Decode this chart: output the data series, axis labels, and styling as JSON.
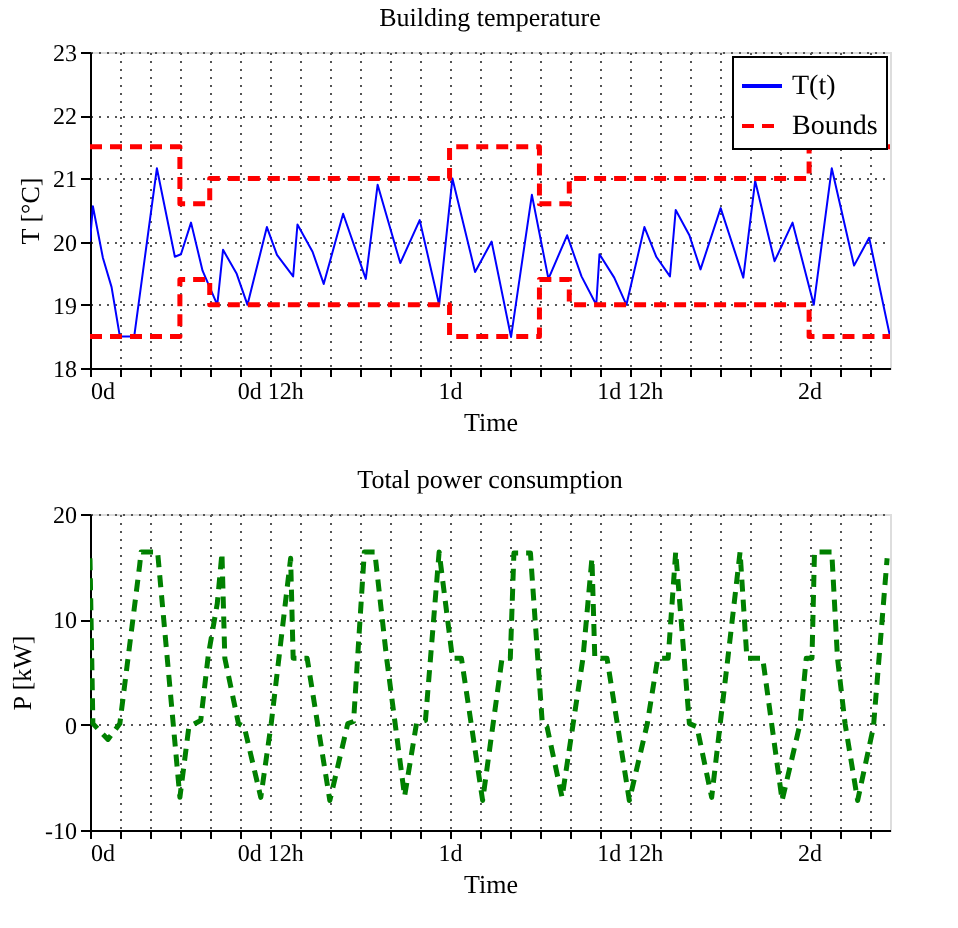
{
  "chart_data": [
    {
      "type": "line",
      "title": "Building temperature",
      "xlabel": "Time",
      "ylabel": "T [°C]",
      "xlim": [
        0,
        2.225
      ],
      "xticks": [
        {
          "value": 0,
          "label": "0d"
        },
        {
          "value": 0.0833,
          "label": null
        },
        {
          "value": 0.1667,
          "label": null
        },
        {
          "value": 0.25,
          "label": null
        },
        {
          "value": 0.3333,
          "label": null
        },
        {
          "value": 0.4167,
          "label": null
        },
        {
          "value": 0.5,
          "label": "0d 12h"
        },
        {
          "value": 0.5833,
          "label": null
        },
        {
          "value": 0.6667,
          "label": null
        },
        {
          "value": 0.75,
          "label": null
        },
        {
          "value": 0.8333,
          "label": null
        },
        {
          "value": 0.9167,
          "label": null
        },
        {
          "value": 1,
          "label": "1d"
        },
        {
          "value": 1.0833,
          "label": null
        },
        {
          "value": 1.1667,
          "label": null
        },
        {
          "value": 1.25,
          "label": null
        },
        {
          "value": 1.3333,
          "label": null
        },
        {
          "value": 1.4167,
          "label": null
        },
        {
          "value": 1.5,
          "label": "1d 12h"
        },
        {
          "value": 1.5833,
          "label": null
        },
        {
          "value": 1.6667,
          "label": null
        },
        {
          "value": 1.75,
          "label": null
        },
        {
          "value": 1.8333,
          "label": null
        },
        {
          "value": 1.9167,
          "label": null
        },
        {
          "value": 2,
          "label": "2d"
        },
        {
          "value": 2.0833,
          "label": null
        },
        {
          "value": 2.1667,
          "label": null
        }
      ],
      "ylim": [
        18,
        23
      ],
      "yticks": [
        18,
        19,
        20,
        21,
        22,
        23
      ],
      "grid": true,
      "legend": "top right",
      "series": [
        {
          "name": "T(t)",
          "color": "#0000ff",
          "line_style": "solid",
          "x": [
            0,
            0.008,
            0.036,
            0.06,
            0.083,
            0.123,
            0.186,
            0.236,
            0.253,
            0.281,
            0.313,
            0.354,
            0.37,
            0.408,
            0.438,
            0.492,
            0.52,
            0.565,
            0.577,
            0.619,
            0.65,
            0.704,
            0.767,
            0.8,
            0.863,
            0.917,
            0.971,
            1.008,
            1.071,
            1.117,
            1.171,
            1.229,
            1.275,
            1.327,
            1.367,
            1.408,
            1.417,
            1.458,
            1.492,
            1.542,
            1.575,
            1.613,
            1.629,
            1.667,
            1.698,
            1.754,
            1.817,
            1.85,
            1.904,
            1.954,
            2.013,
            2.063,
            2.125,
            2.167,
            2.225
          ],
          "values": [
            20.0,
            20.56,
            19.74,
            19.28,
            18.5,
            18.5,
            21.16,
            19.76,
            19.8,
            20.3,
            19.54,
            19.0,
            19.87,
            19.49,
            19.0,
            20.23,
            19.79,
            19.45,
            20.27,
            19.84,
            19.33,
            20.44,
            19.41,
            20.9,
            19.66,
            20.34,
            19.0,
            21.0,
            19.52,
            20.0,
            18.49,
            20.74,
            19.41,
            20.1,
            19.45,
            19.0,
            19.8,
            19.43,
            19.0,
            20.23,
            19.76,
            19.45,
            20.5,
            20.1,
            19.56,
            20.53,
            19.43,
            20.96,
            19.69,
            20.3,
            19.0,
            21.16,
            19.62,
            20.06,
            18.5
          ]
        },
        {
          "name": "Bounds",
          "color": "#ff0000",
          "line_style": "dashed",
          "x": [
            0,
            0.25,
            0.25,
            0.333,
            0.333,
            1,
            1,
            1.25,
            1.25,
            1.333,
            1.333,
            2,
            2,
            2.225
          ],
          "values": [
            21.5,
            21.5,
            20.6,
            20.6,
            21,
            21,
            21.5,
            21.5,
            20.6,
            20.6,
            21,
            21,
            21.5,
            21.5
          ]
        },
        {
          "color": "#ff0000",
          "line_style": "dashed",
          "x": [
            0,
            0.25,
            0.25,
            0.333,
            0.333,
            1,
            1,
            1.25,
            1.25,
            1.333,
            1.333,
            2,
            2,
            2.225
          ],
          "values": [
            18.5,
            18.5,
            19.4,
            19.4,
            19,
            19,
            18.5,
            18.5,
            19.4,
            19.4,
            19,
            19,
            18.5,
            18.5
          ]
        }
      ]
    },
    {
      "type": "line",
      "title": "Total power consumption",
      "xlabel": "Time",
      "ylabel": "P [kW]",
      "xlim": [
        0,
        2.225
      ],
      "xticks": [
        {
          "value": 0,
          "label": "0d"
        },
        {
          "value": 0.0833,
          "label": null
        },
        {
          "value": 0.1667,
          "label": null
        },
        {
          "value": 0.25,
          "label": null
        },
        {
          "value": 0.3333,
          "label": null
        },
        {
          "value": 0.4167,
          "label": null
        },
        {
          "value": 0.5,
          "label": "0d 12h"
        },
        {
          "value": 0.5833,
          "label": null
        },
        {
          "value": 0.6667,
          "label": null
        },
        {
          "value": 0.75,
          "label": null
        },
        {
          "value": 0.8333,
          "label": null
        },
        {
          "value": 0.9167,
          "label": null
        },
        {
          "value": 1,
          "label": "1d"
        },
        {
          "value": 1.0833,
          "label": null
        },
        {
          "value": 1.1667,
          "label": null
        },
        {
          "value": 1.25,
          "label": null
        },
        {
          "value": 1.3333,
          "label": null
        },
        {
          "value": 1.4167,
          "label": null
        },
        {
          "value": 1.5,
          "label": "1d 12h"
        },
        {
          "value": 1.5833,
          "label": null
        },
        {
          "value": 1.6667,
          "label": null
        },
        {
          "value": 1.75,
          "label": null
        },
        {
          "value": 1.8333,
          "label": null
        },
        {
          "value": 1.9167,
          "label": null
        },
        {
          "value": 2,
          "label": "2d"
        },
        {
          "value": 2.0833,
          "label": null
        },
        {
          "value": 2.1667,
          "label": null
        }
      ],
      "ylim": [
        -10,
        20
      ],
      "yticks": [
        -10,
        0,
        10,
        20
      ],
      "grid": true,
      "series": [
        {
          "color": "#008000",
          "line_style": "dashed",
          "x": [
            0,
            0.008,
            0.05,
            0.083,
            0.138,
            0.142,
            0.188,
            0.25,
            0.275,
            0.308,
            0.329,
            0.354,
            0.367,
            0.375,
            0.413,
            0.429,
            0.475,
            0.504,
            0.558,
            0.565,
            0.604,
            0.667,
            0.717,
            0.733,
            0.763,
            0.792,
            0.825,
            0.875,
            0.908,
            0.933,
            0.971,
            1.008,
            1.033,
            1.092,
            1.146,
            1.169,
            1.179,
            1.225,
            1.258,
            1.271,
            1.313,
            1.371,
            1.396,
            1.404,
            1.438,
            1.5,
            1.55,
            1.579,
            1.608,
            1.629,
            1.667,
            1.688,
            1.729,
            1.775,
            1.808,
            1.827,
            1.871,
            1.925,
            1.975,
            1.992,
            2.008,
            2.015,
            2.063,
            2.079,
            2.1,
            2.135,
            2.179,
            2.217
          ],
          "values": [
            15.8,
            0.1,
            -1.4,
            0.1,
            15.1,
            16.4,
            16.4,
            -6.9,
            -0.2,
            0.4,
            6.6,
            11.5,
            16.3,
            6.3,
            0.1,
            -0.2,
            -6.9,
            0.1,
            15.8,
            6.3,
            6.3,
            -7.2,
            0.1,
            0.3,
            16.4,
            16.4,
            6.3,
            -6.8,
            0.1,
            0.4,
            16.4,
            6.3,
            6.3,
            -7.2,
            6.3,
            6.3,
            16.3,
            16.3,
            0.1,
            -0.2,
            -6.9,
            6.3,
            15.8,
            6.3,
            6.3,
            -7.2,
            0.1,
            6.3,
            6.3,
            16.4,
            0.1,
            -0.2,
            -6.9,
            6.6,
            16.4,
            6.3,
            6.3,
            -7.2,
            0.1,
            6.3,
            6.3,
            16.4,
            16.4,
            6.3,
            0.1,
            -7.2,
            -0.2,
            15.8
          ]
        }
      ]
    }
  ]
}
